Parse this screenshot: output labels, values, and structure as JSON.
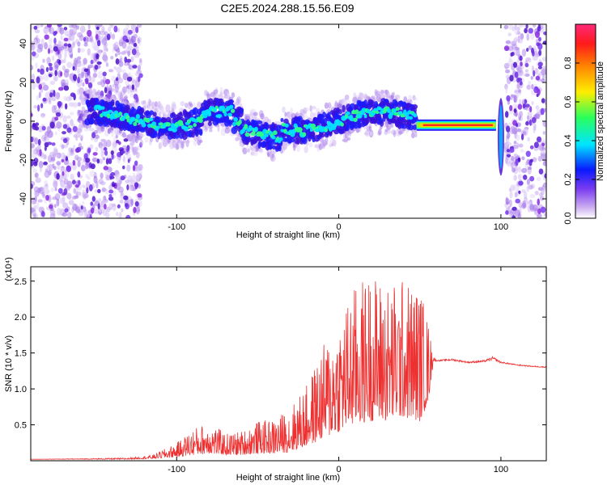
{
  "title": "C2E5.2024.288.15.56.E09",
  "chart_data": [
    {
      "type": "heatmap",
      "xlabel": "Height of straight line (km)",
      "ylabel": "Frequency (Hz)",
      "xlim": [
        -190,
        128
      ],
      "ylim": [
        -50,
        50
      ],
      "xticks": [
        -100,
        0,
        100
      ],
      "yticks": [
        -40,
        -20,
        0,
        20,
        40
      ],
      "colorbar": {
        "label": "Normalized spectral amplitude",
        "range": [
          0,
          1
        ],
        "ticks": [
          "0.0",
          "0.2",
          "0.4",
          "0.6",
          "0.8"
        ],
        "tick_values": [
          0,
          0.2,
          0.4,
          0.6,
          0.8
        ]
      },
      "colors": [
        "#ffffff",
        "#c8a8f0",
        "#6a2ee0",
        "#0a1aff",
        "#00e5ff",
        "#2bff5a",
        "#ffee00",
        "#ff8800",
        "#ff1a1a",
        "#ff2a7a"
      ],
      "band": {
        "description": "horizontal frequency band near 0 Hz",
        "noise_regions_x": [
          [
            -190,
            -122
          ],
          [
            103,
            128
          ]
        ],
        "signal_x": [
          -150,
          100
        ],
        "steady_tone_x": [
          48,
          97
        ],
        "steady_tone_frequency": -2
      }
    },
    {
      "type": "line",
      "xlabel": "Height of straight line (km)",
      "ylabel": "SNR (10 * v/v)",
      "y_multiplier": "(x10⁴)",
      "xlim": [
        -190,
        128
      ],
      "ylim": [
        0,
        2.7
      ],
      "xticks": [
        -100,
        0,
        100
      ],
      "yticks": [
        0.5,
        1.0,
        1.5,
        2.0,
        2.5
      ],
      "ytick_labels": [
        "0.5",
        "1.0",
        "1.5",
        "2.0",
        "2.5"
      ],
      "series_color": "#ee3030",
      "x": [
        -190,
        -160,
        -130,
        -115,
        -100,
        -90,
        -80,
        -70,
        -60,
        -50,
        -40,
        -30,
        -20,
        -10,
        0,
        10,
        20,
        30,
        40,
        50,
        55,
        58,
        60,
        70,
        80,
        90,
        95,
        100,
        110,
        120,
        128
      ],
      "envelope": [
        0.02,
        0.03,
        0.04,
        0.08,
        0.25,
        0.45,
        0.55,
        0.38,
        0.42,
        0.55,
        0.58,
        0.75,
        1.05,
        1.6,
        2.0,
        2.45,
        2.65,
        2.5,
        2.55,
        2.45,
        2.0,
        1.5,
        1.4,
        1.42,
        1.38,
        1.4,
        1.45,
        1.38,
        1.34,
        1.32,
        1.31
      ],
      "baseline": [
        0.02,
        0.02,
        0.02,
        0.03,
        0.05,
        0.08,
        0.1,
        0.08,
        0.08,
        0.1,
        0.1,
        0.12,
        0.2,
        0.3,
        0.4,
        0.5,
        0.55,
        0.55,
        0.6,
        0.55,
        0.8,
        1.3,
        1.38,
        1.38,
        1.35,
        1.36,
        1.38,
        1.35,
        1.32,
        1.3,
        1.29
      ]
    }
  ]
}
